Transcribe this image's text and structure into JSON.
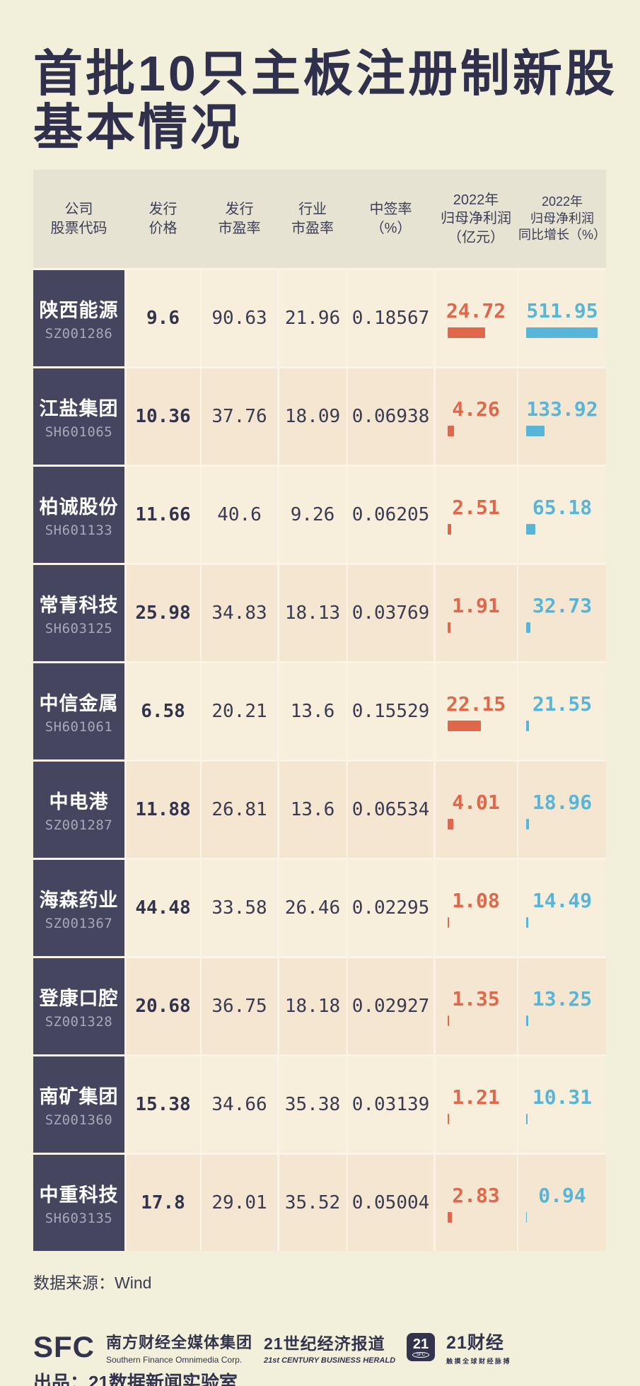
{
  "title": {
    "line1": "首批10只主板注册制新股",
    "line2": "基本情况"
  },
  "colors": {
    "background": "#f2f0da",
    "title": "#30304c",
    "header_bg": "#e6e3d2",
    "company_cell_bg": "#45455f",
    "row_light": "#f8eedc",
    "row_dark": "#f5e6d1",
    "accent_red": "#e0674a",
    "accent_blue": "#58b5d8",
    "text_dark": "#3a3a52"
  },
  "table": {
    "headers": [
      "公司\n股票代码",
      "发行\n价格",
      "发行\n市盈率",
      "行业\n市盈率",
      "中签率\n（%）",
      "2022年\n归母净利润\n（亿元）",
      "2022年\n归母净利润\n同比增长（%）"
    ],
    "rows": [
      {
        "name": "陕西能源",
        "code": "SZ001286",
        "price": "9.6",
        "issue_pe": "90.63",
        "industry_pe": "21.96",
        "lottery": "0.18567",
        "profit": "24.72",
        "growth": "511.95"
      },
      {
        "name": "江盐集团",
        "code": "SH601065",
        "price": "10.36",
        "issue_pe": "37.76",
        "industry_pe": "18.09",
        "lottery": "0.06938",
        "profit": "4.26",
        "growth": "133.92"
      },
      {
        "name": "柏诚股份",
        "code": "SH601133",
        "price": "11.66",
        "issue_pe": "40.6",
        "industry_pe": "9.26",
        "lottery": "0.06205",
        "profit": "2.51",
        "growth": "65.18"
      },
      {
        "name": "常青科技",
        "code": "SH603125",
        "price": "25.98",
        "issue_pe": "34.83",
        "industry_pe": "18.13",
        "lottery": "0.03769",
        "profit": "1.91",
        "growth": "32.73"
      },
      {
        "name": "中信金属",
        "code": "SH601061",
        "price": "6.58",
        "issue_pe": "20.21",
        "industry_pe": "13.6",
        "lottery": "0.15529",
        "profit": "22.15",
        "growth": "21.55"
      },
      {
        "name": "中电港",
        "code": "SZ001287",
        "price": "11.88",
        "issue_pe": "26.81",
        "industry_pe": "13.6",
        "lottery": "0.06534",
        "profit": "4.01",
        "growth": "18.96"
      },
      {
        "name": "海森药业",
        "code": "SZ001367",
        "price": "44.48",
        "issue_pe": "33.58",
        "industry_pe": "26.46",
        "lottery": "0.02295",
        "profit": "1.08",
        "growth": "14.49"
      },
      {
        "name": "登康口腔",
        "code": "SZ001328",
        "price": "20.68",
        "issue_pe": "36.75",
        "industry_pe": "18.18",
        "lottery": "0.02927",
        "profit": "1.35",
        "growth": "13.25"
      },
      {
        "name": "南矿集团",
        "code": "SZ001360",
        "price": "15.38",
        "issue_pe": "34.66",
        "industry_pe": "35.38",
        "lottery": "0.03139",
        "profit": "1.21",
        "growth": "10.31"
      },
      {
        "name": "中重科技",
        "code": "SH603135",
        "price": "17.8",
        "issue_pe": "29.01",
        "industry_pe": "35.52",
        "lottery": "0.05004",
        "profit": "2.83",
        "growth": "0.94"
      }
    ]
  },
  "source_note": "数据来源：Wind",
  "footer": {
    "sfc_logo": "SFC",
    "sfc_cn": "南方财经全媒体集团",
    "sfc_en": "Southern Finance Omnimedia Corp.",
    "herald_cn": "21世纪经济报道",
    "herald_en": "21st CENTURY BUSINESS HERALD",
    "box21_number": "21",
    "box21_sub": "SFC",
    "cj_name": "21财经",
    "cj_tagline": "触摸全球财经脉搏",
    "credit": "出品：21数据新闻实验室"
  },
  "chart_data": {
    "type": "table",
    "title": "首批10只主板注册制新股基本情况",
    "columns": [
      "公司股票代码",
      "发行价格",
      "发行市盈率",
      "行业市盈率",
      "中签率（%）",
      "2022年归母净利润（亿元）",
      "2022年归母净利润同比增长（%）"
    ],
    "rows": [
      [
        "陕西能源 SZ001286",
        9.6,
        90.63,
        21.96,
        0.18567,
        24.72,
        511.95
      ],
      [
        "江盐集团 SH601065",
        10.36,
        37.76,
        18.09,
        0.06938,
        4.26,
        133.92
      ],
      [
        "柏诚股份 SH601133",
        11.66,
        40.6,
        9.26,
        0.06205,
        2.51,
        65.18
      ],
      [
        "常青科技 SH603125",
        25.98,
        34.83,
        18.13,
        0.03769,
        1.91,
        32.73
      ],
      [
        "中信金属 SH601061",
        6.58,
        20.21,
        13.6,
        0.15529,
        22.15,
        21.55
      ],
      [
        "中电港 SZ001287",
        11.88,
        26.81,
        13.6,
        0.06534,
        4.01,
        18.96
      ],
      [
        "海森药业 SZ001367",
        44.48,
        33.58,
        26.46,
        0.02295,
        1.08,
        14.49
      ],
      [
        "登康口腔 SZ001328",
        20.68,
        36.75,
        18.18,
        0.02927,
        1.35,
        13.25
      ],
      [
        "南矿集团 SZ001360",
        15.38,
        34.66,
        35.38,
        0.03139,
        1.21,
        10.31
      ],
      [
        "中重科技 SH603135",
        17.8,
        29.01,
        35.52,
        0.05004,
        2.83,
        0.94
      ]
    ],
    "embedded_bar_charts": [
      {
        "column": "2022年归母净利润（亿元）",
        "type": "bar",
        "color": "#e0674a",
        "values": [
          24.72,
          4.26,
          2.51,
          1.91,
          22.15,
          4.01,
          1.08,
          1.35,
          1.21,
          2.83
        ]
      },
      {
        "column": "2022年归母净利润同比增长（%）",
        "type": "bar",
        "color": "#58b5d8",
        "values": [
          511.95,
          133.92,
          65.18,
          32.73,
          21.55,
          18.96,
          14.49,
          13.25,
          10.31,
          0.94
        ]
      }
    ],
    "source": "Wind"
  }
}
